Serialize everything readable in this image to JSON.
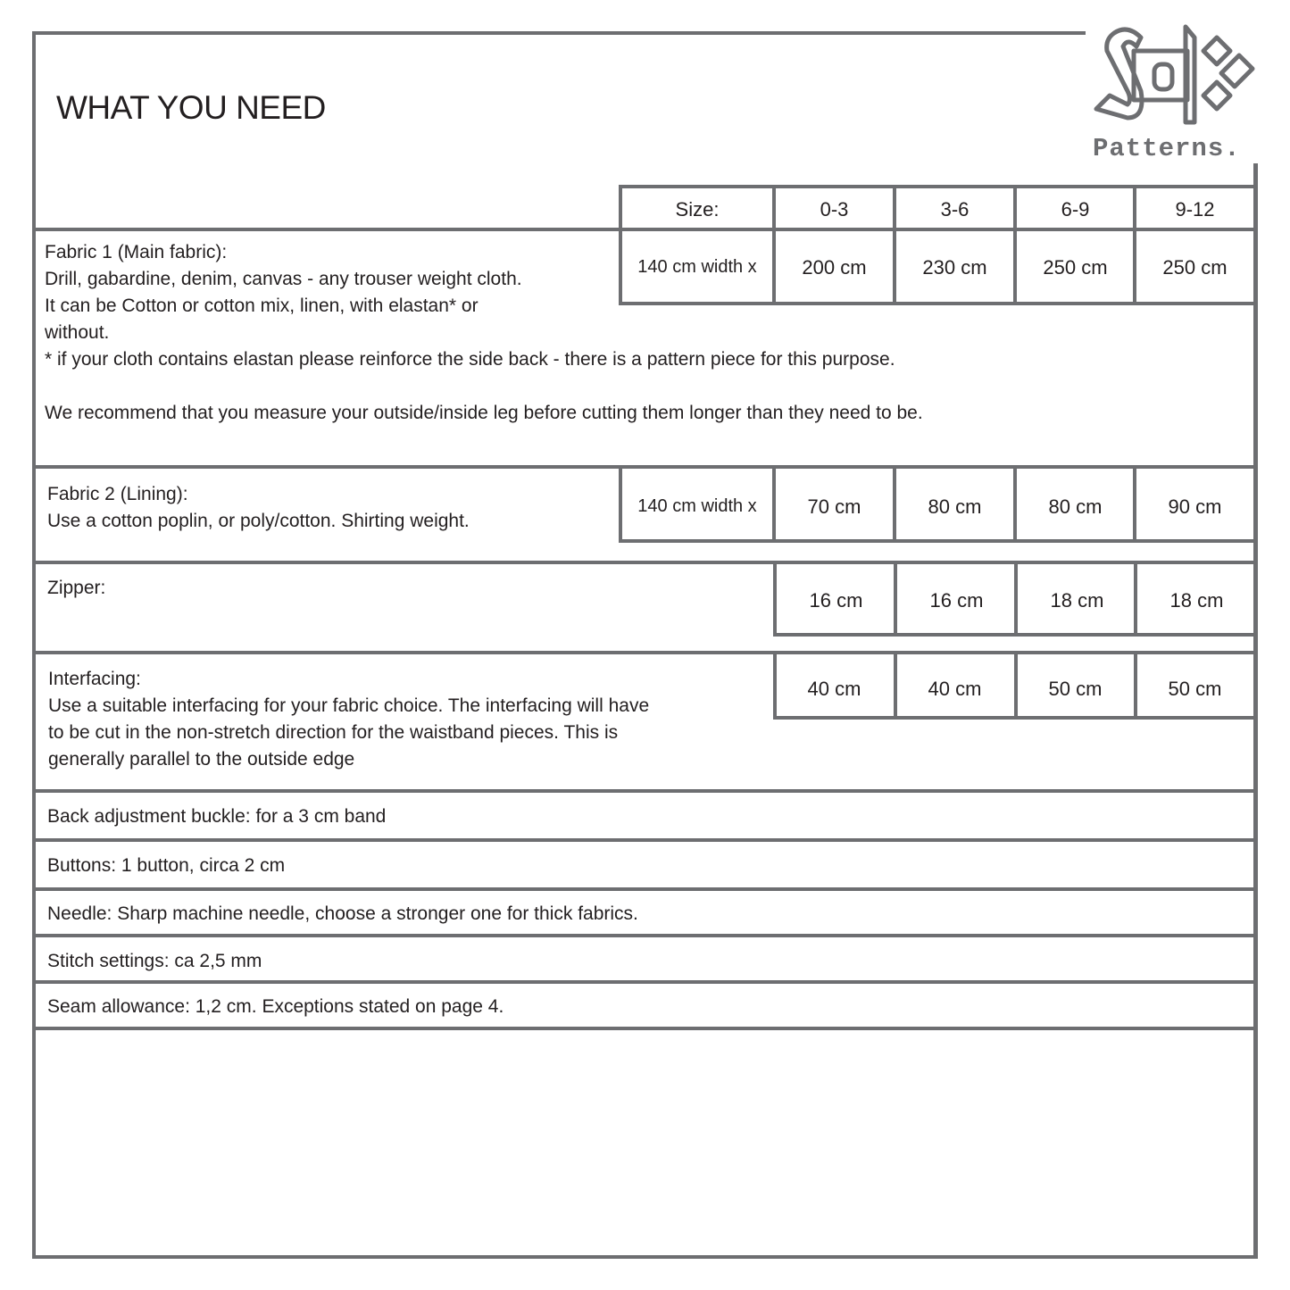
{
  "title": "WHAT YOU NEED",
  "logo": {
    "mark": "Stox",
    "text": "Patterns.",
    "color": "#6d6e71"
  },
  "size_header": {
    "label": "Size:",
    "sizes": [
      "0-3",
      "3-6",
      "6-9",
      "9-12"
    ]
  },
  "fabric1": {
    "lines": [
      "Fabric 1 (Main fabric):",
      "Drill, gabardine, denim, canvas - any trouser weight cloth.",
      "It can be Cotton or cotton mix, linen, with elastan* or",
      "without.",
      "* if your cloth contains elastan please reinforce the side back - there is a pattern piece for this purpose.",
      "",
      "We recommend that you measure your outside/inside leg before cutting them longer than they need to be."
    ],
    "width_label": "140 cm width x",
    "values": [
      "200 cm",
      "230 cm",
      "250 cm",
      "250 cm"
    ]
  },
  "fabric2": {
    "lines": [
      "Fabric 2 (Lining):",
      "Use a  cotton poplin, or poly/cotton. Shirting weight."
    ],
    "width_label": "140 cm width x",
    "values": [
      "70 cm",
      "80 cm",
      "80 cm",
      "90 cm"
    ]
  },
  "zipper": {
    "lines": [
      "Zipper:"
    ],
    "values": [
      "16 cm",
      "16 cm",
      "18 cm",
      "18 cm"
    ]
  },
  "interfacing": {
    "lines": [
      "Interfacing:",
      "Use a suitable interfacing for your fabric choice. The interfacing will have",
      "to be cut in the non-stretch direction for the waistband pieces. This is",
      "generally parallel to the outside edge"
    ],
    "values": [
      "40 cm",
      "40 cm",
      "50 cm",
      "50 cm"
    ]
  },
  "single_rows": [
    "Back adjustment buckle: for a 3 cm band",
    "Buttons: 1 button, circa 2 cm",
    "Needle: Sharp machine needle, choose a stronger one for thick fabrics.",
    "Stitch settings: ca 2,5 mm",
    "Seam allowance: 1,2 cm. Exceptions stated on page 4."
  ]
}
